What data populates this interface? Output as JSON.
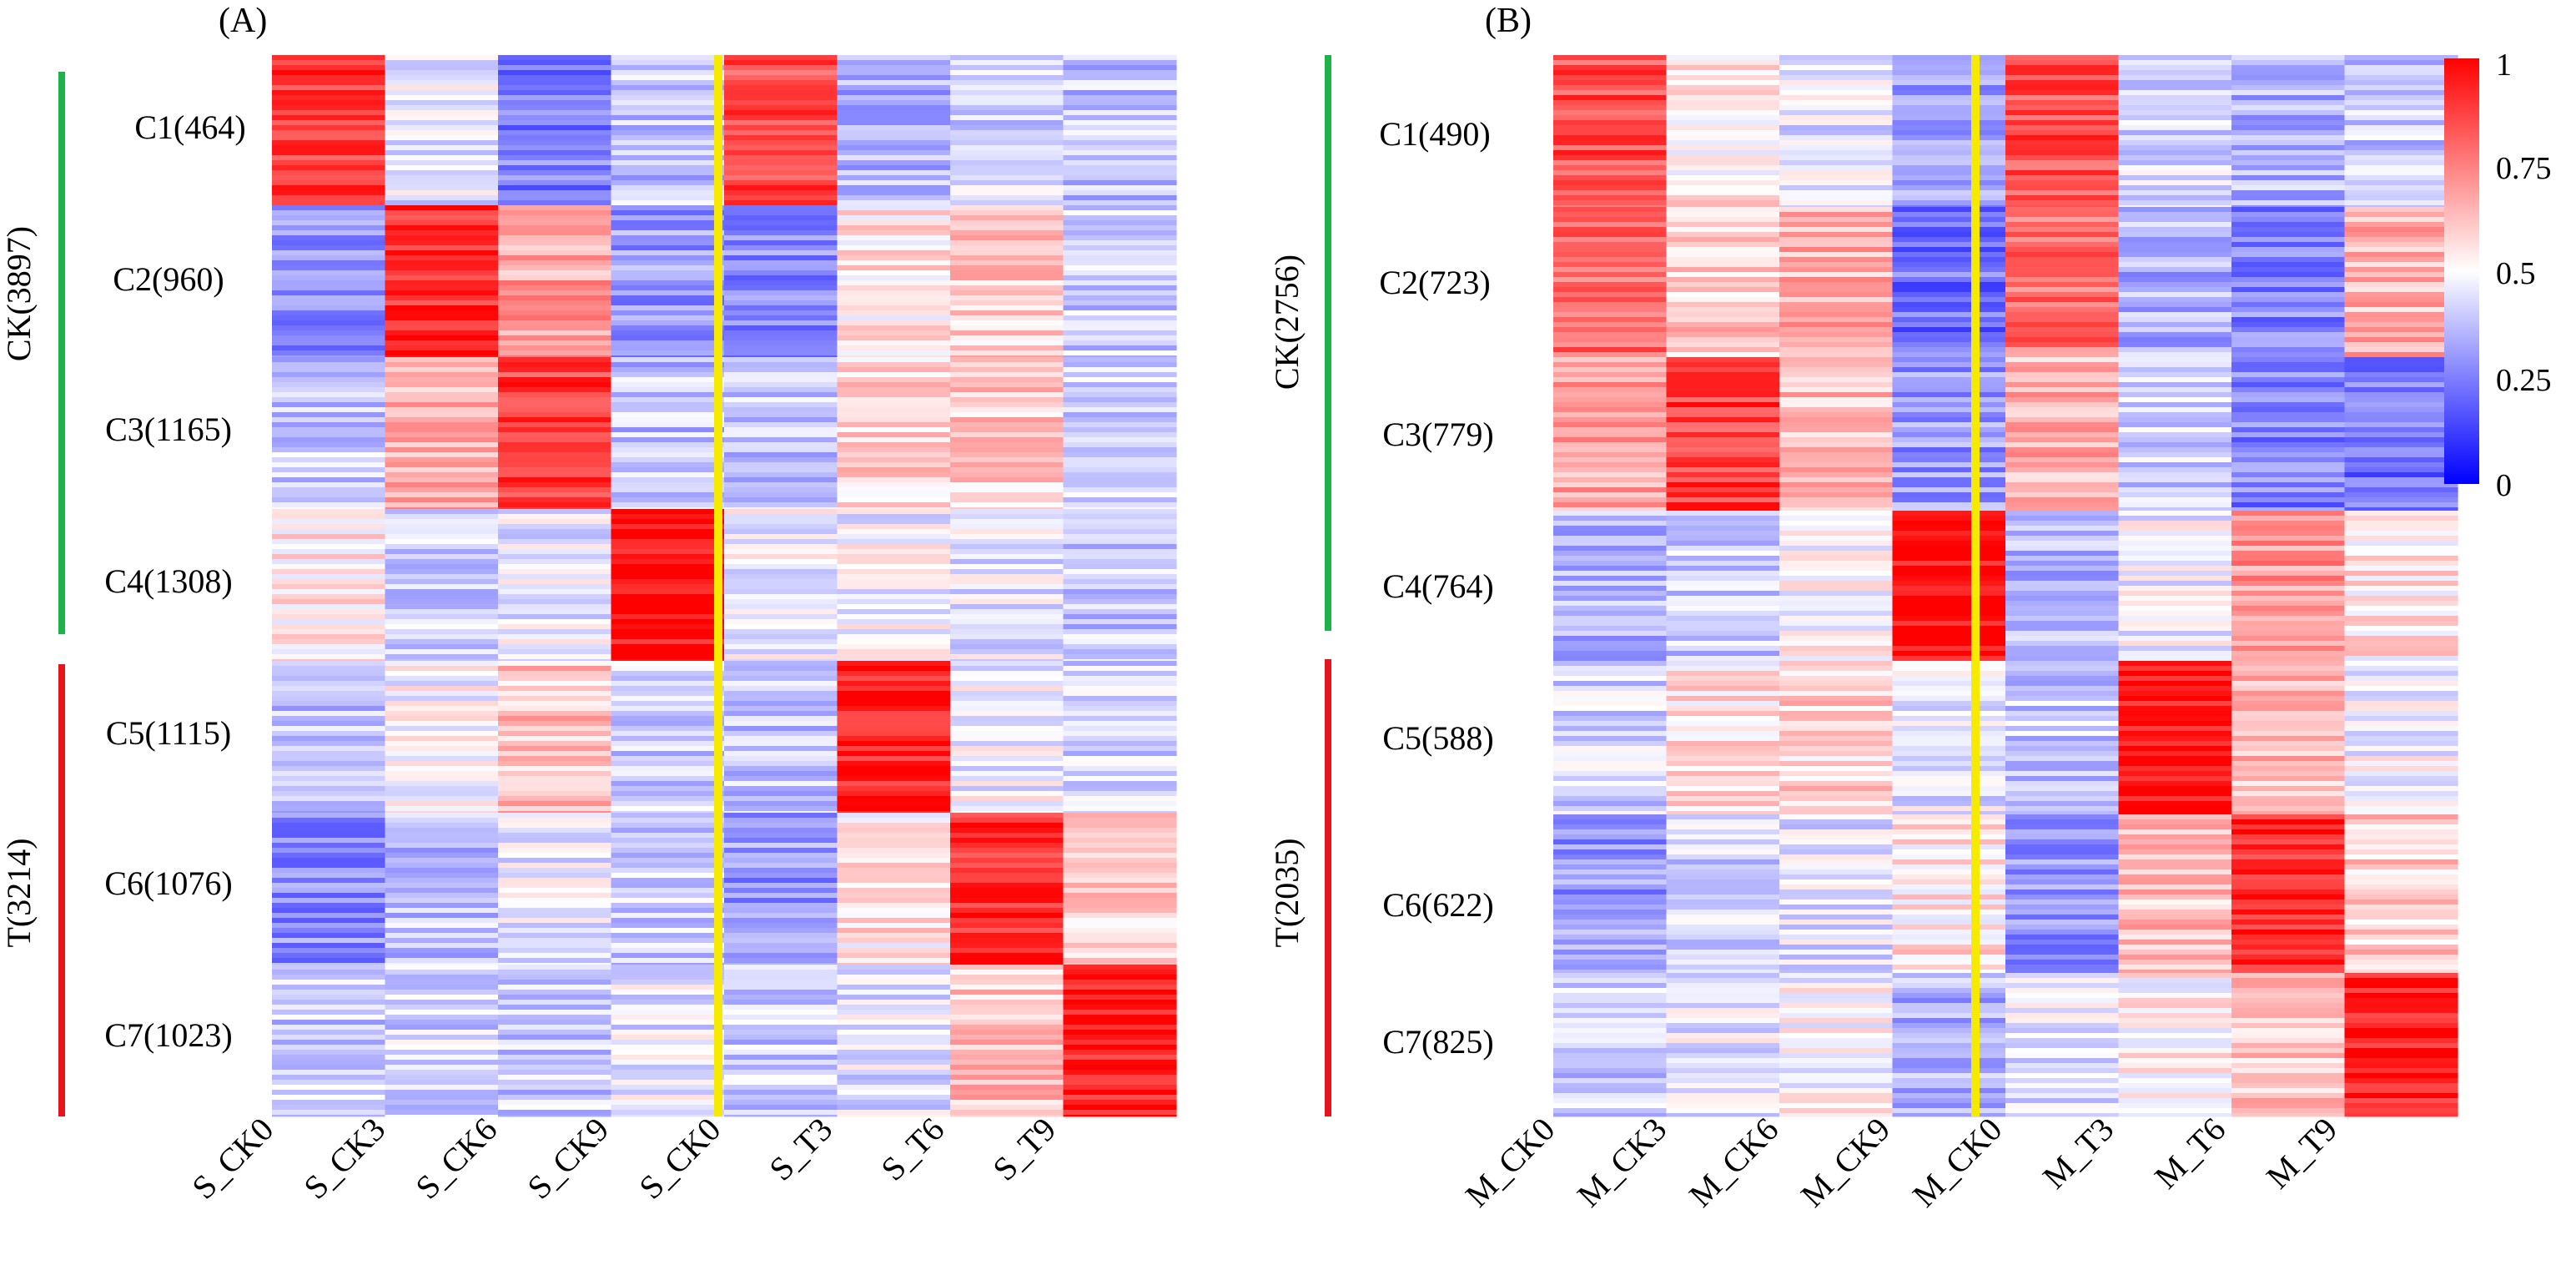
{
  "figure": {
    "panels": [
      {
        "label": "(A)",
        "group_ck": "CK(3897)",
        "group_t": "T(3214)",
        "columns": [
          "S_CK0",
          "S_CK3",
          "S_CK6",
          "S_CK9",
          "S_CK0",
          "S_T3",
          "S_T6",
          "S_T9"
        ],
        "clusters": [
          "C1(464)",
          "C2(960)",
          "C3(1165)",
          "C4(1308)",
          "C5(1115)",
          "C6(1076)",
          "C7(1023)"
        ]
      },
      {
        "label": "(B)",
        "group_ck": "CK(2756)",
        "group_t": "T(2035)",
        "columns": [
          "M_CK0",
          "M_CK3",
          "M_CK6",
          "M_CK9",
          "M_CK0",
          "M_T3",
          "M_T6",
          "M_T9"
        ],
        "clusters": [
          "C1(490)",
          "C2(723)",
          "C3(779)",
          "C4(764)",
          "C5(588)",
          "C6(622)",
          "C7(825)"
        ]
      }
    ],
    "colorbar": {
      "ticks": [
        "1",
        "0.75",
        "0.5",
        "0.25",
        "0"
      ]
    },
    "colors": {
      "high": "#ff0000",
      "mid": "#ffffff",
      "low": "#0000ff",
      "ck_bar": "#1db34a",
      "t_bar": "#e8141c",
      "divider": "#f5ea00"
    }
  },
  "chart_data": [
    {
      "type": "heatmap",
      "title": "(A)",
      "x_categories": [
        "S_CK0",
        "S_CK3",
        "S_CK6",
        "S_CK9",
        "S_CK0",
        "S_T3",
        "S_T6",
        "S_T9"
      ],
      "row_clusters": [
        "C1(464)",
        "C2(960)",
        "C3(1165)",
        "C4(1308)",
        "C5(1115)",
        "C6(1076)",
        "C7(1023)"
      ],
      "row_groups": [
        {
          "name": "CK(3897)",
          "clusters": [
            "C1",
            "C2",
            "C3",
            "C4"
          ]
        },
        {
          "name": "T(3214)",
          "clusters": [
            "C5",
            "C6",
            "C7"
          ]
        }
      ],
      "cluster_mean_values": [
        [
          0.88,
          0.45,
          0.25,
          0.38,
          0.86,
          0.35,
          0.42,
          0.38
        ],
        [
          0.28,
          0.92,
          0.68,
          0.3,
          0.28,
          0.55,
          0.6,
          0.4
        ],
        [
          0.4,
          0.66,
          0.88,
          0.38,
          0.38,
          0.58,
          0.6,
          0.42
        ],
        [
          0.55,
          0.42,
          0.46,
          0.98,
          0.48,
          0.48,
          0.45,
          0.4
        ],
        [
          0.38,
          0.5,
          0.62,
          0.4,
          0.38,
          0.95,
          0.48,
          0.42
        ],
        [
          0.28,
          0.38,
          0.45,
          0.4,
          0.3,
          0.55,
          0.92,
          0.6
        ],
        [
          0.4,
          0.42,
          0.4,
          0.45,
          0.4,
          0.45,
          0.62,
          0.95
        ]
      ],
      "color_scale": {
        "min": 0,
        "max": 1,
        "ticks": [
          0,
          0.25,
          0.5,
          0.75,
          1
        ]
      }
    },
    {
      "type": "heatmap",
      "title": "(B)",
      "x_categories": [
        "M_CK0",
        "M_CK3",
        "M_CK6",
        "M_CK9",
        "M_CK0",
        "M_T3",
        "M_T6",
        "M_T9"
      ],
      "row_clusters": [
        "C1(490)",
        "C2(723)",
        "C3(779)",
        "C4(764)",
        "C5(588)",
        "C6(622)",
        "C7(825)"
      ],
      "row_groups": [
        {
          "name": "CK(2756)",
          "clusters": [
            "C1",
            "C2",
            "C3",
            "C4"
          ]
        },
        {
          "name": "T(2035)",
          "clusters": [
            "C5",
            "C6",
            "C7"
          ]
        }
      ],
      "cluster_mean_values": [
        [
          0.85,
          0.55,
          0.45,
          0.32,
          0.85,
          0.42,
          0.35,
          0.4
        ],
        [
          0.8,
          0.6,
          0.65,
          0.22,
          0.78,
          0.35,
          0.25,
          0.65
        ],
        [
          0.68,
          0.88,
          0.62,
          0.3,
          0.65,
          0.4,
          0.25,
          0.22
        ],
        [
          0.35,
          0.4,
          0.5,
          0.98,
          0.35,
          0.48,
          0.7,
          0.55
        ],
        [
          0.42,
          0.55,
          0.58,
          0.45,
          0.4,
          0.98,
          0.62,
          0.48
        ],
        [
          0.3,
          0.42,
          0.45,
          0.55,
          0.28,
          0.62,
          0.92,
          0.6
        ],
        [
          0.4,
          0.45,
          0.5,
          0.35,
          0.45,
          0.52,
          0.6,
          0.95
        ]
      ],
      "color_scale": {
        "min": 0,
        "max": 1,
        "ticks": [
          0,
          0.25,
          0.5,
          0.75,
          1
        ]
      }
    }
  ]
}
